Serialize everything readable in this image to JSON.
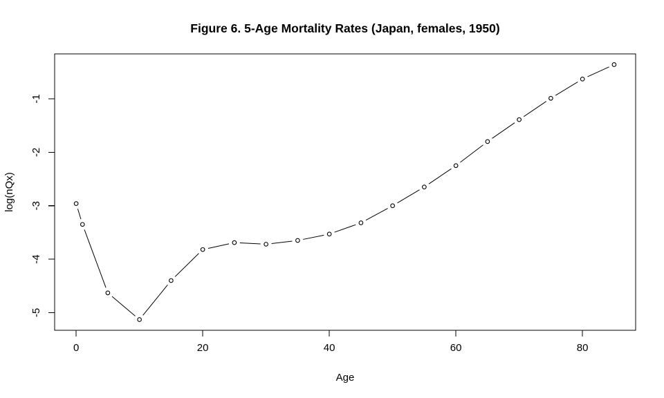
{
  "ink_color": "#000000",
  "background_color": "#ffffff",
  "chart_data": {
    "type": "line",
    "title": "Figure 6. 5-Age Mortality Rates (Japan, females, 1950)",
    "xlabel": "Age",
    "ylabel": "log(nQx)",
    "marker": "open-circle",
    "line_style": "segments-with-gaps-at-markers (R type='b')",
    "line_color": "#000000",
    "grid": false,
    "legend": null,
    "x": [
      0,
      1,
      5,
      10,
      15,
      20,
      25,
      30,
      35,
      40,
      45,
      50,
      55,
      60,
      65,
      70,
      75,
      80,
      85
    ],
    "y": [
      -2.96,
      -3.35,
      -4.63,
      -5.13,
      -4.4,
      -3.82,
      -3.69,
      -3.72,
      -3.65,
      -3.53,
      -3.32,
      -3.0,
      -2.65,
      -2.25,
      -1.8,
      -1.39,
      -0.99,
      -0.63,
      -0.36
    ],
    "x_ticks": [
      0,
      20,
      40,
      60,
      80
    ],
    "x_tick_labels": [
      "0",
      "20",
      "40",
      "60",
      "80"
    ],
    "y_ticks": [
      -1,
      -2,
      -3,
      -4,
      -5
    ],
    "y_tick_labels": [
      "-1",
      "-2",
      "-3",
      "-4",
      "-5"
    ],
    "xlim": [
      -3.4,
      88.4
    ],
    "ylim": [
      -5.33,
      -0.16
    ]
  }
}
